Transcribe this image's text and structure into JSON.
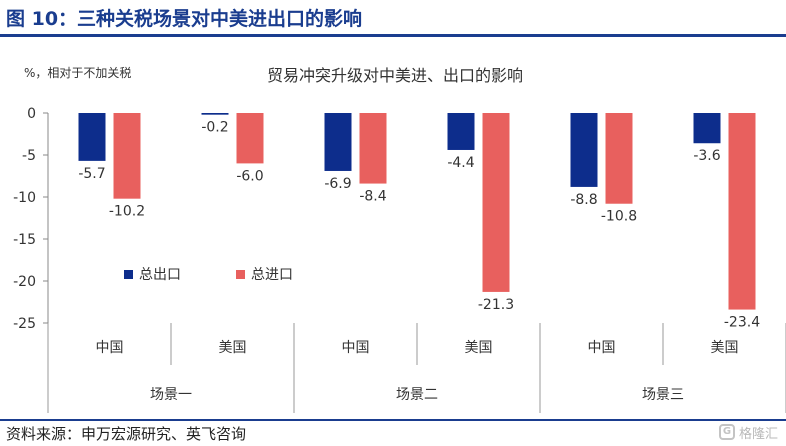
{
  "figure_title": "图 10：三种关税场景对中美进出口的影响",
  "source_text": "资料来源：申万宏源研究、英飞咨询",
  "watermark_text": "格隆汇",
  "chart_data": {
    "type": "bar",
    "title": "贸易冲突升级对中美进、出口的影响",
    "ylabel": "%，相对于不加关税",
    "ylim": [
      -25,
      0
    ],
    "yticks": [
      0,
      -5,
      -10,
      -15,
      -20,
      -25
    ],
    "grid": false,
    "legend_position": "center-left",
    "categories": [
      "中国",
      "美国",
      "中国",
      "美国",
      "中国",
      "美国"
    ],
    "groups": [
      {
        "label": "场景一",
        "span": [
          0,
          1
        ]
      },
      {
        "label": "场景二",
        "span": [
          2,
          3
        ]
      },
      {
        "label": "场景三",
        "span": [
          4,
          5
        ]
      }
    ],
    "series": [
      {
        "name": "总出口",
        "color": "#0d2d8c",
        "values": [
          -5.7,
          -0.2,
          -6.9,
          -4.4,
          -8.8,
          -3.6
        ]
      },
      {
        "name": "总进口",
        "color": "#e8605e",
        "values": [
          -10.2,
          -6.0,
          -8.4,
          -21.3,
          -10.8,
          -23.4
        ]
      }
    ]
  }
}
